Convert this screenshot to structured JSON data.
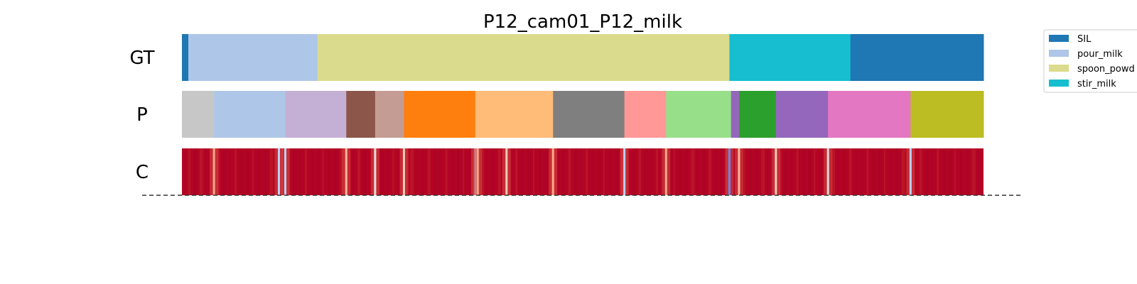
{
  "chart_data": {
    "type": "segmentation",
    "title": "P12_cam01_P12_milk",
    "x_range": [
      0,
      1000
    ],
    "rows": [
      {
        "label": "GT",
        "segments": [
          {
            "start": 0,
            "end": 8,
            "color": "#1f77b4"
          },
          {
            "start": 8,
            "end": 169,
            "color": "#aec7e8"
          },
          {
            "start": 169,
            "end": 683,
            "color": "#dbdb8d"
          },
          {
            "start": 683,
            "end": 834,
            "color": "#17becf"
          },
          {
            "start": 834,
            "end": 1000,
            "color": "#1f77b4"
          }
        ]
      },
      {
        "label": "P",
        "segments": [
          {
            "start": 0,
            "end": 40,
            "color": "#c7c7c7"
          },
          {
            "start": 40,
            "end": 129,
            "color": "#aec7e8"
          },
          {
            "start": 129,
            "end": 205,
            "color": "#c5b0d5"
          },
          {
            "start": 205,
            "end": 241,
            "color": "#8c564b"
          },
          {
            "start": 241,
            "end": 277,
            "color": "#c49c94"
          },
          {
            "start": 277,
            "end": 366,
            "color": "#ff7f0e"
          },
          {
            "start": 366,
            "end": 463,
            "color": "#ffbb78"
          },
          {
            "start": 463,
            "end": 552,
            "color": "#7f7f7f"
          },
          {
            "start": 552,
            "end": 604,
            "color": "#ff9896"
          },
          {
            "start": 604,
            "end": 685,
            "color": "#98df8a"
          },
          {
            "start": 685,
            "end": 695,
            "color": "#9467bd"
          },
          {
            "start": 695,
            "end": 741,
            "color": "#2ca02c"
          },
          {
            "start": 741,
            "end": 806,
            "color": "#9467bd"
          },
          {
            "start": 806,
            "end": 909,
            "color": "#e377c2"
          },
          {
            "start": 909,
            "end": 1000,
            "color": "#bcbd22"
          }
        ]
      },
      {
        "label": "C",
        "base_color": "#b40426",
        "boundary_dips": [
          {
            "pos": 40,
            "color": "#f7a889"
          },
          {
            "pos": 121,
            "color": "#b9d0f9"
          },
          {
            "pos": 129,
            "color": "#b9d0f9"
          },
          {
            "pos": 205,
            "color": "#f7b79b"
          },
          {
            "pos": 241,
            "color": "#dddcdc"
          },
          {
            "pos": 277,
            "color": "#f2cbb7"
          },
          {
            "pos": 366,
            "color": "#b9d0f9"
          },
          {
            "pos": 369,
            "color": "#f7a889"
          },
          {
            "pos": 405,
            "color": "#f2cbb7"
          },
          {
            "pos": 463,
            "color": "#f7a889"
          },
          {
            "pos": 552,
            "color": "#b9d0f9"
          },
          {
            "pos": 604,
            "color": "#f7a889"
          },
          {
            "pos": 683,
            "color": "#6788ee"
          },
          {
            "pos": 695,
            "color": "#f7b79b"
          },
          {
            "pos": 741,
            "color": "#f2cbb7"
          },
          {
            "pos": 806,
            "color": "#dddcdc"
          },
          {
            "pos": 909,
            "color": "#b9d0f9"
          }
        ]
      }
    ],
    "legend": {
      "placement": "top-right",
      "entries": [
        {
          "label": "SIL",
          "color": "#1f77b4"
        },
        {
          "label": "pour_milk",
          "color": "#aec7e8"
        },
        {
          "label": "spoon_powd",
          "color": "#dbdb8d"
        },
        {
          "label": "stir_milk",
          "color": "#17becf"
        }
      ]
    },
    "baseline": {
      "style": "dashed",
      "color": "#333333"
    }
  }
}
